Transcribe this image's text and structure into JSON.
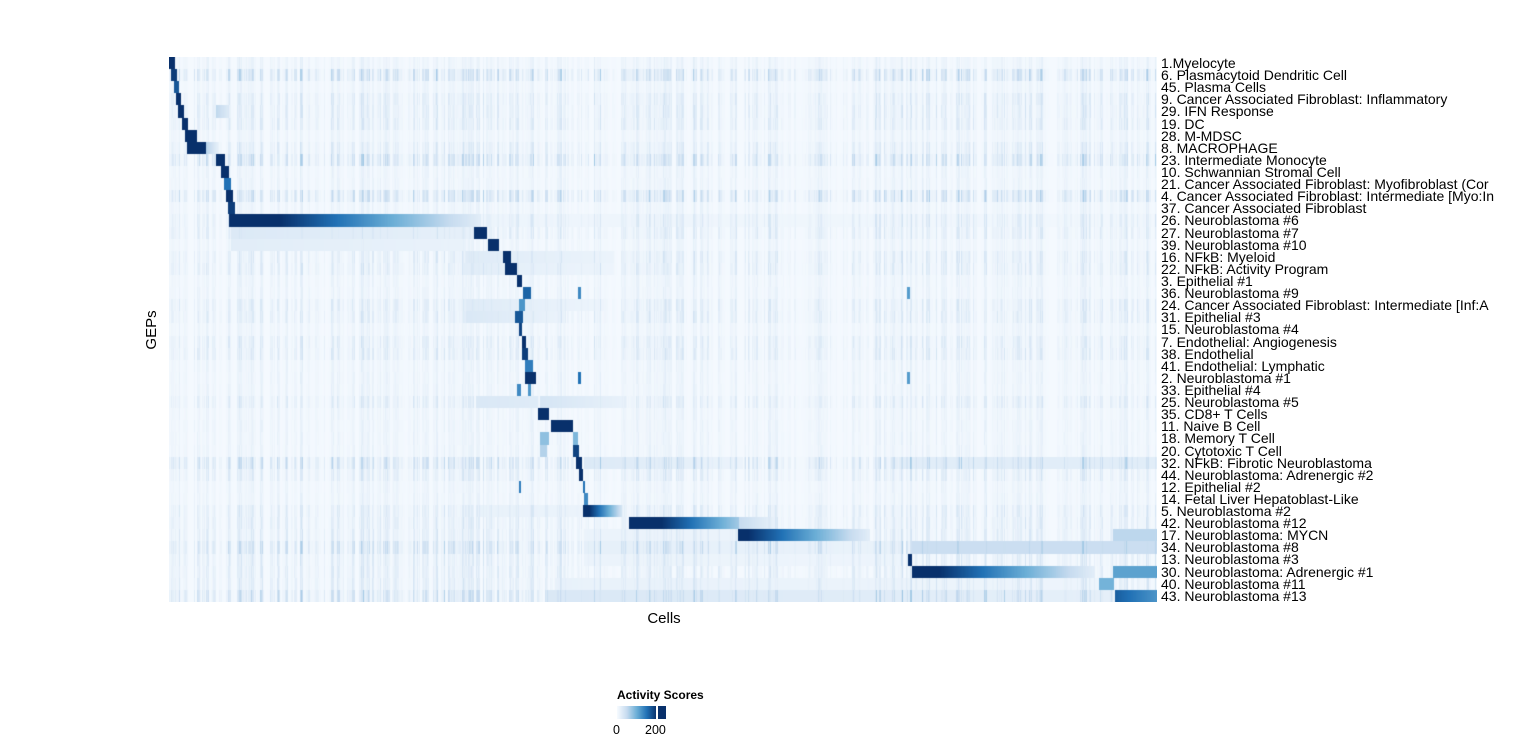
{
  "figure": {
    "background": "#ffffff"
  },
  "chart_data": {
    "type": "heatmap",
    "title": "",
    "xlabel": "Cells",
    "ylabel": "GEPs",
    "x_axis": {
      "tick_labels": []
    },
    "value_range": [
      0,
      200
    ],
    "palette": {
      "stops": [
        "#F7FBFF",
        "#C6DBEF",
        "#6BAED6",
        "#2171B5",
        "#08306B"
      ],
      "min_value": 0,
      "max_value": 200
    },
    "legend": {
      "title": "Activity Scores",
      "tick_labels": [
        "0",
        "200"
      ],
      "tick_positions": [
        0.0,
        0.81
      ]
    },
    "rows": [
      {
        "label": "1.Myelocyte",
        "noise": 1,
        "segments": [
          [
            0.0,
            0.006,
            220,
            220
          ]
        ]
      },
      {
        "label": "6. Plasmacytoid Dendritic Cell",
        "noise": 3,
        "segments": [
          [
            0.002,
            0.008,
            190,
            190
          ]
        ]
      },
      {
        "label": "45. Plasma Cells",
        "noise": 1,
        "segments": [
          [
            0.005,
            0.01,
            170,
            170
          ]
        ]
      },
      {
        "label": "9. Cancer Associated Fibroblast: Inflammatory",
        "noise": 2,
        "segments": [
          [
            0.007,
            0.012,
            215,
            215
          ]
        ]
      },
      {
        "label": "29. IFN Response",
        "noise": 2,
        "segments": [
          [
            0.009,
            0.015,
            230,
            230
          ],
          [
            0.047,
            0.06,
            55,
            25
          ]
        ]
      },
      {
        "label": "19. DC",
        "noise": 2,
        "segments": [
          [
            0.013,
            0.019,
            200,
            200
          ]
        ]
      },
      {
        "label": "28. M-MDSC",
        "noise": 1,
        "segments": [
          [
            0.016,
            0.028,
            235,
            235
          ]
        ]
      },
      {
        "label": "8. MACROPHAGE",
        "noise": 2,
        "segments": [
          [
            0.018,
            0.037,
            245,
            245
          ],
          [
            0.037,
            0.05,
            60,
            15
          ]
        ]
      },
      {
        "label": "23. Intermediate Monocyte",
        "noise": 3,
        "segments": [
          [
            0.047,
            0.056,
            215,
            215
          ]
        ]
      },
      {
        "label": "10. Schwannian Stromal Cell",
        "noise": 1,
        "segments": [
          [
            0.052,
            0.06,
            225,
            225
          ]
        ]
      },
      {
        "label": "21. Cancer Associated Fibroblast: Myofibroblast (Cor",
        "noise": 1,
        "segments": [
          [
            0.055,
            0.062,
            150,
            150
          ]
        ]
      },
      {
        "label": "4. Cancer Associated Fibroblast: Intermediate [Myo:In",
        "noise": 3,
        "segments": [
          [
            0.057,
            0.064,
            200,
            200
          ]
        ]
      },
      {
        "label": "37. Cancer Associated Fibroblast",
        "noise": 1,
        "segments": [
          [
            0.059,
            0.066,
            190,
            190
          ]
        ]
      },
      {
        "label": "26. Neuroblastoma #6",
        "noise": 2,
        "segments": [
          [
            0.06,
            0.315,
            245,
            22
          ],
          [
            0.315,
            1.0,
            10,
            6
          ]
        ]
      },
      {
        "label": "27. Neuroblastoma #7",
        "noise": 2,
        "segments": [
          [
            0.062,
            0.3,
            28,
            18
          ],
          [
            0.308,
            0.321,
            220,
            220
          ]
        ]
      },
      {
        "label": "39. Neuroblastoma #10",
        "noise": 1,
        "segments": [
          [
            0.062,
            0.3,
            22,
            14
          ],
          [
            0.322,
            0.333,
            210,
            210
          ]
        ]
      },
      {
        "label": "16. NFkB: Myeloid",
        "noise": 2,
        "segments": [
          [
            0.3,
            0.45,
            25,
            12
          ],
          [
            0.338,
            0.346,
            235,
            235
          ]
        ]
      },
      {
        "label": "22. NFkB: Activity Program",
        "noise": 2,
        "segments": [
          [
            0.3,
            0.45,
            22,
            10
          ],
          [
            0.34,
            0.352,
            245,
            245
          ]
        ]
      },
      {
        "label": "3. Epithelial #1",
        "noise": 1,
        "segments": [
          [
            0.352,
            0.357,
            220,
            220
          ]
        ]
      },
      {
        "label": "36. Neuroblastoma #9",
        "noise": 1,
        "segments": [
          [
            0.358,
            0.366,
            160,
            160
          ],
          [
            0.413,
            0.416,
            130,
            130
          ],
          [
            0.7465,
            0.7495,
            115,
            115
          ]
        ]
      },
      {
        "label": "24. Cancer Associated Fibroblast: Intermediate [Inf:A",
        "noise": 2,
        "segments": [
          [
            0.3,
            0.44,
            25,
            10
          ],
          [
            0.354,
            0.36,
            120,
            120
          ]
        ]
      },
      {
        "label": "31. Epithelial #3",
        "noise": 2,
        "segments": [
          [
            0.3,
            0.4,
            30,
            12
          ],
          [
            0.35,
            0.358,
            170,
            170
          ]
        ]
      },
      {
        "label": "15. Neuroblastoma #4",
        "noise": 1,
        "segments": [
          [
            0.354,
            0.357,
            185,
            185
          ]
        ]
      },
      {
        "label": "7. Endothelial: Angiogenesis",
        "noise": 2,
        "segments": [
          [
            0.357,
            0.361,
            225,
            225
          ]
        ]
      },
      {
        "label": "38. Endothelial",
        "noise": 2,
        "segments": [
          [
            0.357,
            0.363,
            190,
            190
          ]
        ]
      },
      {
        "label": "41. Endothelial: Lymphatic",
        "noise": 1,
        "segments": [
          [
            0.36,
            0.368,
            140,
            140
          ]
        ]
      },
      {
        "label": "2. Neuroblastoma #1",
        "noise": 1,
        "segments": [
          [
            0.36,
            0.371,
            235,
            235
          ],
          [
            0.413,
            0.416,
            150,
            150
          ],
          [
            0.7465,
            0.7495,
            115,
            115
          ]
        ]
      },
      {
        "label": "33. Epithelial #4",
        "noise": 1,
        "segments": [
          [
            0.352,
            0.356,
            130,
            130
          ],
          [
            0.363,
            0.366,
            120,
            120
          ]
        ]
      },
      {
        "label": "25. Neuroblastoma #5",
        "noise": 2,
        "segments": [
          [
            0.31,
            0.373,
            30,
            25
          ],
          [
            0.375,
            0.46,
            35,
            15
          ]
        ]
      },
      {
        "label": "35. CD8+ T Cells",
        "noise": 1,
        "segments": [
          [
            0.373,
            0.384,
            240,
            240
          ]
        ]
      },
      {
        "label": "11. Naive B Cell",
        "noise": 1,
        "segments": [
          [
            0.386,
            0.408,
            250,
            250
          ]
        ]
      },
      {
        "label": "18. Memory T Cell",
        "noise": 1,
        "segments": [
          [
            0.375,
            0.384,
            80,
            80
          ],
          [
            0.408,
            0.413,
            90,
            90
          ]
        ]
      },
      {
        "label": "20. Cytotoxic T Cell",
        "noise": 1,
        "segments": [
          [
            0.375,
            0.382,
            60,
            60
          ],
          [
            0.408,
            0.414,
            185,
            185
          ]
        ]
      },
      {
        "label": "32. NFkB: Fibrotic Neuroblastoma",
        "noise": 3,
        "segments": [
          [
            0.411,
            0.418,
            205,
            205
          ],
          [
            0.42,
            0.58,
            28,
            12
          ],
          [
            0.74,
            1.0,
            22,
            22
          ]
        ]
      },
      {
        "label": "44. Neuroblastoma: Adrenergic #2",
        "noise": 2,
        "segments": [
          [
            0.414,
            0.419,
            225,
            225
          ]
        ]
      },
      {
        "label": "12. Epithelial #2",
        "noise": 1,
        "segments": [
          [
            0.354,
            0.356,
            140,
            140
          ],
          [
            0.419,
            0.421,
            150,
            150
          ]
        ]
      },
      {
        "label": "14. Fetal Liver Hepatoblast-Like",
        "noise": 1,
        "segments": [
          [
            0.42,
            0.424,
            130,
            130
          ]
        ]
      },
      {
        "label": "5. Neuroblastoma #2",
        "noise": 2,
        "segments": [
          [
            0.31,
            0.419,
            15,
            12
          ],
          [
            0.419,
            0.458,
            230,
            35
          ]
        ]
      },
      {
        "label": "42. Neuroblastoma #12",
        "noise": 2,
        "segments": [
          [
            0.465,
            0.576,
            255,
            70
          ],
          [
            0.576,
            0.613,
            50,
            15
          ]
        ]
      },
      {
        "label": "17. Neuroblastoma: MYCN",
        "noise": 2,
        "segments": [
          [
            0.42,
            0.575,
            12,
            12
          ],
          [
            0.575,
            0.709,
            215,
            20
          ],
          [
            0.955,
            1.0,
            55,
            55
          ]
        ]
      },
      {
        "label": "34. Neuroblastoma #8",
        "noise": 3,
        "segments": [
          [
            0.42,
            0.74,
            18,
            14
          ],
          [
            0.752,
            1.0,
            45,
            45
          ]
        ]
      },
      {
        "label": "13. Neuroblastoma #3",
        "noise": 2,
        "segments": [
          [
            0.42,
            0.74,
            12,
            10
          ],
          [
            0.747,
            0.7515,
            250,
            250
          ]
        ]
      },
      {
        "label": "30. Neuroblastoma: Adrenergic #1",
        "noise": 2,
        "segments": [
          [
            0.752,
            0.937,
            230,
            20
          ],
          [
            0.955,
            1.0,
            110,
            110
          ]
        ]
      },
      {
        "label": "40. Neuroblastoma #11",
        "noise": 2,
        "segments": [
          [
            0.39,
            0.94,
            15,
            10
          ],
          [
            0.941,
            0.9555,
            95,
            95
          ]
        ]
      },
      {
        "label": "43. Neuroblastoma #13",
        "noise": 3,
        "segments": [
          [
            0.38,
            0.955,
            30,
            18
          ],
          [
            0.957,
            1.0,
            165,
            120
          ]
        ]
      }
    ]
  }
}
